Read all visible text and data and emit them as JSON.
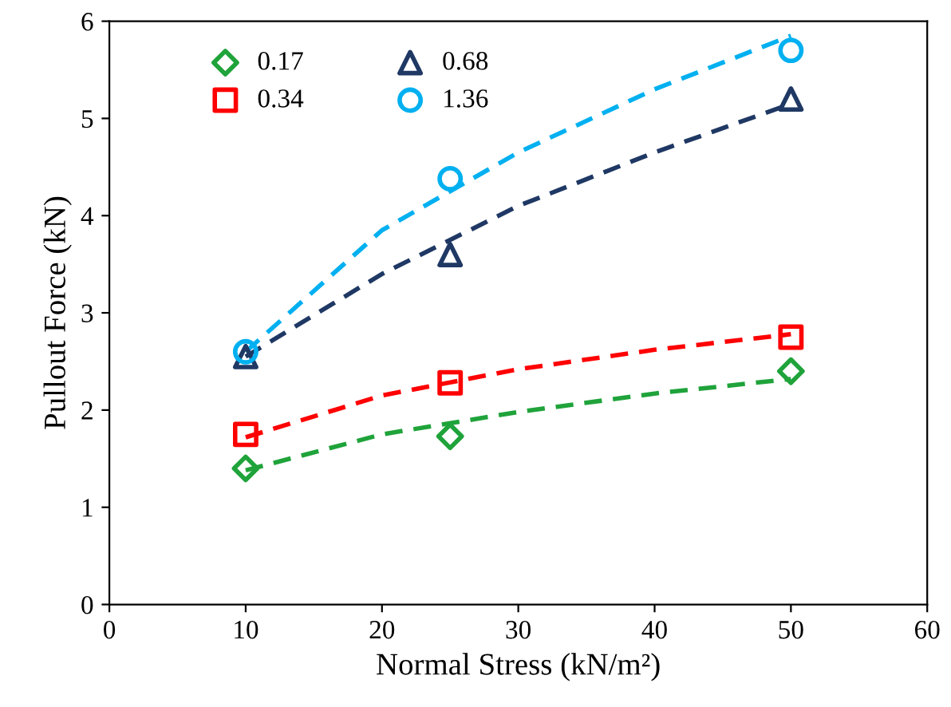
{
  "chart_data": {
    "type": "scatter",
    "xlabel": "Normal Stress (kN/m²)",
    "ylabel": "Pullout Force (kN)",
    "xlim": [
      0,
      60
    ],
    "xticks": [
      0,
      10,
      20,
      30,
      40,
      50,
      60
    ],
    "ylim": [
      0,
      6
    ],
    "yticks": [
      0,
      1,
      2,
      3,
      4,
      5,
      6
    ],
    "grid": false,
    "legend": "top left",
    "series": [
      {
        "name": "0.17",
        "color": "#1fa33a",
        "marker": "diamond",
        "x": [
          10,
          25,
          50
        ],
        "values": [
          1.4,
          1.73,
          2.4
        ]
      },
      {
        "name": "0.34",
        "color": "#ff0000",
        "marker": "square",
        "x": [
          10,
          25,
          50
        ],
        "values": [
          1.75,
          2.28,
          2.75
        ]
      },
      {
        "name": "0.68",
        "color": "#1f3864",
        "marker": "triangle",
        "x": [
          10,
          25,
          50
        ],
        "values": [
          2.55,
          3.6,
          5.2
        ]
      },
      {
        "name": "1.36",
        "color": "#00b0f0",
        "marker": "circle",
        "x": [
          10,
          25,
          50
        ],
        "values": [
          2.6,
          4.38,
          5.7
        ]
      },
      {
        "type": "line",
        "color": "#1fa33a",
        "line_style": "dashed",
        "x": [
          10,
          20,
          30,
          40,
          50
        ],
        "values": [
          1.38,
          1.75,
          1.98,
          2.17,
          2.32
        ]
      },
      {
        "type": "line",
        "color": "#ff0000",
        "line_style": "dashed",
        "x": [
          10,
          20,
          30,
          40,
          50
        ],
        "values": [
          1.72,
          2.15,
          2.42,
          2.62,
          2.78
        ]
      },
      {
        "type": "line",
        "color": "#1f3864",
        "line_style": "dashed",
        "x": [
          10,
          20,
          30,
          40,
          50
        ],
        "values": [
          2.55,
          3.4,
          4.1,
          4.65,
          5.15
        ]
      },
      {
        "type": "line",
        "color": "#00b0f0",
        "line_style": "dashed",
        "x": [
          10,
          20,
          30,
          40,
          50
        ],
        "values": [
          2.6,
          3.85,
          4.65,
          5.3,
          5.85
        ]
      }
    ]
  }
}
